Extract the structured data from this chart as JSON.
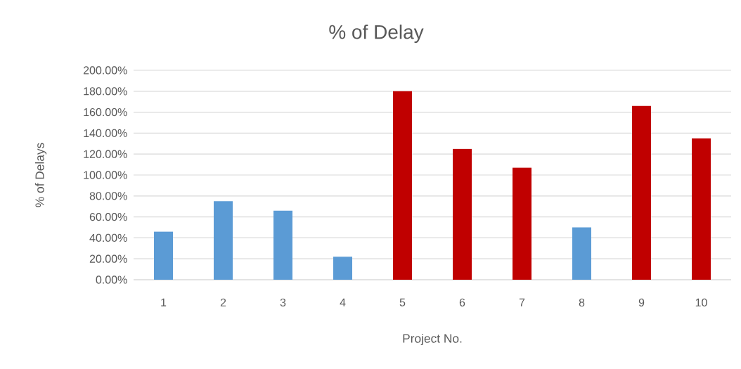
{
  "chart_data": {
    "type": "bar",
    "title": "% of Delay",
    "xlabel": "Project No.",
    "ylabel": "% of Delays",
    "categories": [
      "1",
      "2",
      "3",
      "4",
      "5",
      "6",
      "7",
      "8",
      "9",
      "10"
    ],
    "values": [
      46,
      75,
      66,
      22,
      180,
      125,
      107,
      50,
      166,
      135
    ],
    "colors": [
      "#5b9bd5",
      "#5b9bd5",
      "#5b9bd5",
      "#5b9bd5",
      "#c00000",
      "#c00000",
      "#c00000",
      "#5b9bd5",
      "#c00000",
      "#c00000"
    ],
    "ylim": [
      0,
      200
    ],
    "yticks": [
      {
        "value": 0,
        "label": "0.00%"
      },
      {
        "value": 20,
        "label": "20.00%"
      },
      {
        "value": 40,
        "label": "40.00%"
      },
      {
        "value": 60,
        "label": "60.00%"
      },
      {
        "value": 80,
        "label": "80.00%"
      },
      {
        "value": 100,
        "label": "100.00%"
      },
      {
        "value": 120,
        "label": "120.00%"
      },
      {
        "value": 140,
        "label": "140.00%"
      },
      {
        "value": 160,
        "label": "160.00%"
      },
      {
        "value": 180,
        "label": "180.00%"
      },
      {
        "value": 200,
        "label": "200.00%"
      }
    ],
    "grid": "y"
  }
}
